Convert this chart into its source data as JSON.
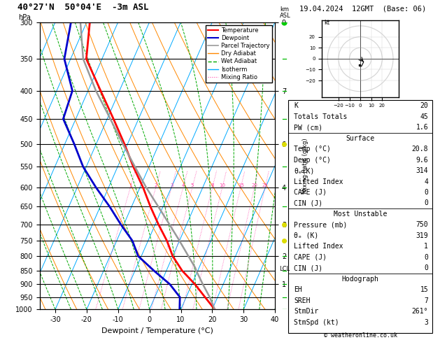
{
  "title_left": "40°27'N  50°04'E  -3m ASL",
  "title_right": "19.04.2024  12GMT  (Base: 06)",
  "xlabel": "Dewpoint / Temperature (°C)",
  "ylabel_left": "hPa",
  "pressure_levels": [
    300,
    350,
    400,
    450,
    500,
    550,
    600,
    650,
    700,
    750,
    800,
    850,
    900,
    950,
    1000
  ],
  "xlim": [
    -35,
    40
  ],
  "skew": 40,
  "temp_color": "#ff0000",
  "dewp_color": "#0000cc",
  "parcel_color": "#999999",
  "dry_adiabat_color": "#ff8800",
  "wet_adiabat_color": "#00aa00",
  "isotherm_color": "#00aaff",
  "mixing_ratio_color": "#ff44aa",
  "background_color": "#ffffff",
  "stats": {
    "K": 20,
    "Totals Totals": 45,
    "PW (cm)": 1.6,
    "Surface_Temp": 20.8,
    "Surface_Dewp": 9.6,
    "Surface_thetae": 314,
    "Surface_LI": 4,
    "Surface_CAPE": 0,
    "Surface_CIN": 0,
    "MU_Pressure": 750,
    "MU_thetae": 319,
    "MU_LI": 1,
    "MU_CAPE": 0,
    "MU_CIN": 0,
    "Hodo_EH": 15,
    "Hodo_SREH": 7,
    "Hodo_StmDir": 261,
    "Hodo_StmSpd": 3
  },
  "temperature_profile": {
    "pressure": [
      1000,
      950,
      900,
      850,
      800,
      750,
      700,
      650,
      600,
      550,
      500,
      450,
      400,
      350,
      300
    ],
    "temp": [
      20.8,
      16.0,
      11.0,
      5.0,
      0.0,
      -4.0,
      -9.0,
      -14.0,
      -19.0,
      -25.0,
      -31.0,
      -38.0,
      -46.0,
      -55.0,
      -59.0
    ]
  },
  "dewpoint_profile": {
    "pressure": [
      1000,
      950,
      900,
      850,
      800,
      750,
      700,
      650,
      600,
      550,
      500,
      450,
      400,
      350,
      300
    ],
    "dewp": [
      9.6,
      8.0,
      3.0,
      -4.0,
      -11.0,
      -15.0,
      -21.0,
      -27.0,
      -34.0,
      -41.0,
      -47.0,
      -54.0,
      -55.0,
      -62.0,
      -65.0
    ]
  },
  "parcel_profile": {
    "pressure": [
      1000,
      950,
      900,
      850,
      840,
      800,
      750,
      700,
      650,
      600,
      550,
      500,
      450,
      400,
      350,
      300
    ],
    "temp": [
      20.8,
      17.5,
      13.5,
      9.5,
      8.8,
      5.0,
      0.0,
      -5.5,
      -11.5,
      -18.0,
      -24.5,
      -31.5,
      -39.0,
      -47.5,
      -56.0,
      -62.0
    ]
  },
  "lcl_pressure": 845,
  "mixing_ratio_lines": [
    1,
    2,
    3,
    4,
    5,
    8,
    10,
    15,
    20,
    25
  ],
  "km_ticks_p": [
    300,
    400,
    500,
    600,
    700,
    800,
    900
  ],
  "km_ticks_v": [
    9,
    7,
    6,
    4,
    3,
    2,
    1
  ],
  "hodograph_u": [
    1,
    2,
    3,
    2,
    1,
    -1
  ],
  "hodograph_v": [
    -1,
    -2,
    -3,
    -5,
    -7,
    -6
  ]
}
